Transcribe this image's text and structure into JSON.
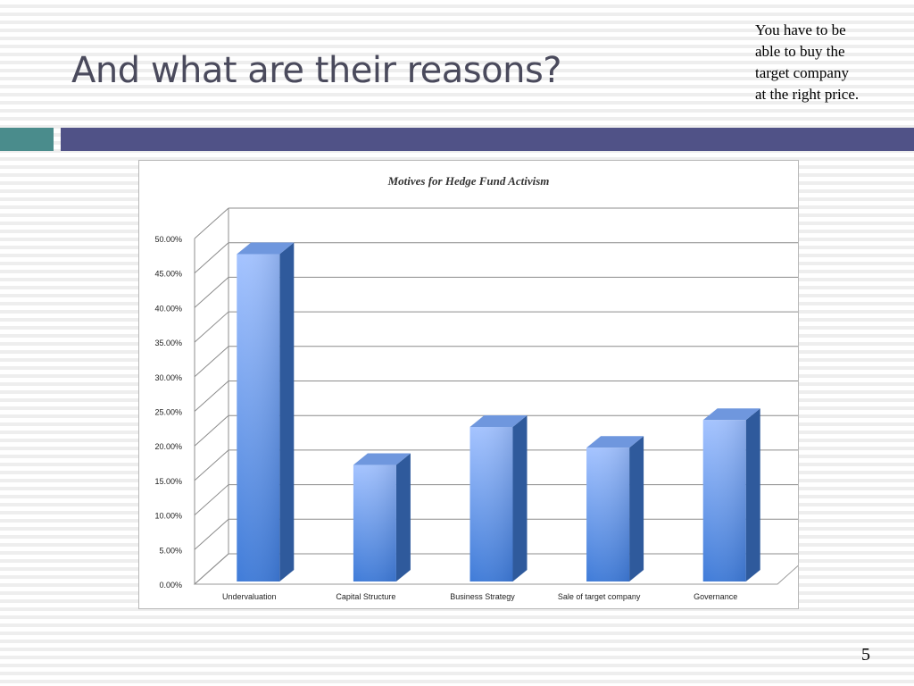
{
  "slide": {
    "title": "And what are their reasons?",
    "note_lines": [
      "You have to be",
      "able to buy the",
      "target company",
      "at the right price."
    ],
    "page_number": "5"
  },
  "colors": {
    "title": "#4a4a5c",
    "accent_teal": "#4a8c8c",
    "accent_navy": "#505287",
    "bar_front_light": "#a4c3ff",
    "bar_front_dark": "#3f7bd8",
    "bar_side": "#2f5a9c",
    "bar_top": "#6f97de"
  },
  "chart_data": {
    "type": "bar",
    "title": "Motives for Hedge Fund Activism",
    "categories": [
      "Undervaluation",
      "Capital Structure",
      "Business Strategy",
      "Sale of target company",
      "Governance"
    ],
    "values": [
      48.0,
      17.5,
      23.0,
      20.0,
      24.0
    ],
    "ylim": [
      0,
      50
    ],
    "yticks": [
      "0.00%",
      "5.00%",
      "10.00%",
      "15.00%",
      "20.00%",
      "25.00%",
      "30.00%",
      "35.00%",
      "40.00%",
      "45.00%",
      "50.00%"
    ],
    "xlabel": "",
    "ylabel": "",
    "grid": true,
    "legend": "none",
    "style": "3d"
  }
}
